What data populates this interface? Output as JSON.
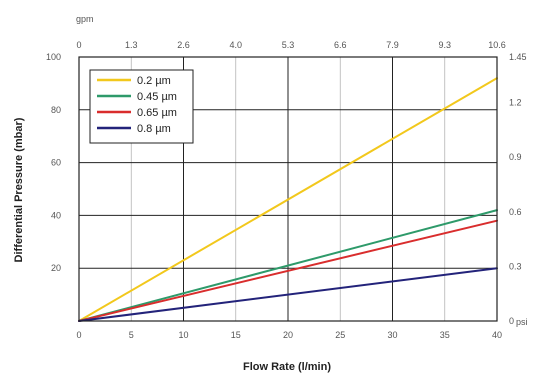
{
  "chart_data": {
    "type": "line",
    "xlabel": "Flow Rate (l/min)",
    "ylabel": "Differential Pressure (mbar)",
    "top_axis_unit": "gpm",
    "right_axis_unit": "psi",
    "xlim": [
      0,
      40
    ],
    "ylim": [
      0,
      100
    ],
    "x_ticks": [
      "0",
      "5",
      "10",
      "15",
      "20",
      "25",
      "30",
      "35",
      "40"
    ],
    "y_ticks": [
      "20",
      "40",
      "60",
      "80",
      "100"
    ],
    "top_ticks": [
      "0",
      "1.3",
      "2.6",
      "4.0",
      "5.3",
      "6.6",
      "7.9",
      "9.3",
      "10.6"
    ],
    "right_ticks": [
      "0",
      "0.3",
      "0.6",
      "0.9",
      "1.2",
      "1.45"
    ],
    "grid": true,
    "legend_position": "top-left",
    "series": [
      {
        "name": "0.2 µm",
        "color": "#f2c81c",
        "x": [
          0,
          40
        ],
        "y": [
          0,
          92
        ]
      },
      {
        "name": "0.45 µm",
        "color": "#2e9a6a",
        "x": [
          0,
          40
        ],
        "y": [
          0,
          42
        ]
      },
      {
        "name": "0.65 µm",
        "color": "#d92d2d",
        "x": [
          0,
          40
        ],
        "y": [
          0,
          38
        ]
      },
      {
        "name": "0.8 µm",
        "color": "#23237a",
        "x": [
          0,
          40
        ],
        "y": [
          0,
          20
        ]
      }
    ]
  }
}
